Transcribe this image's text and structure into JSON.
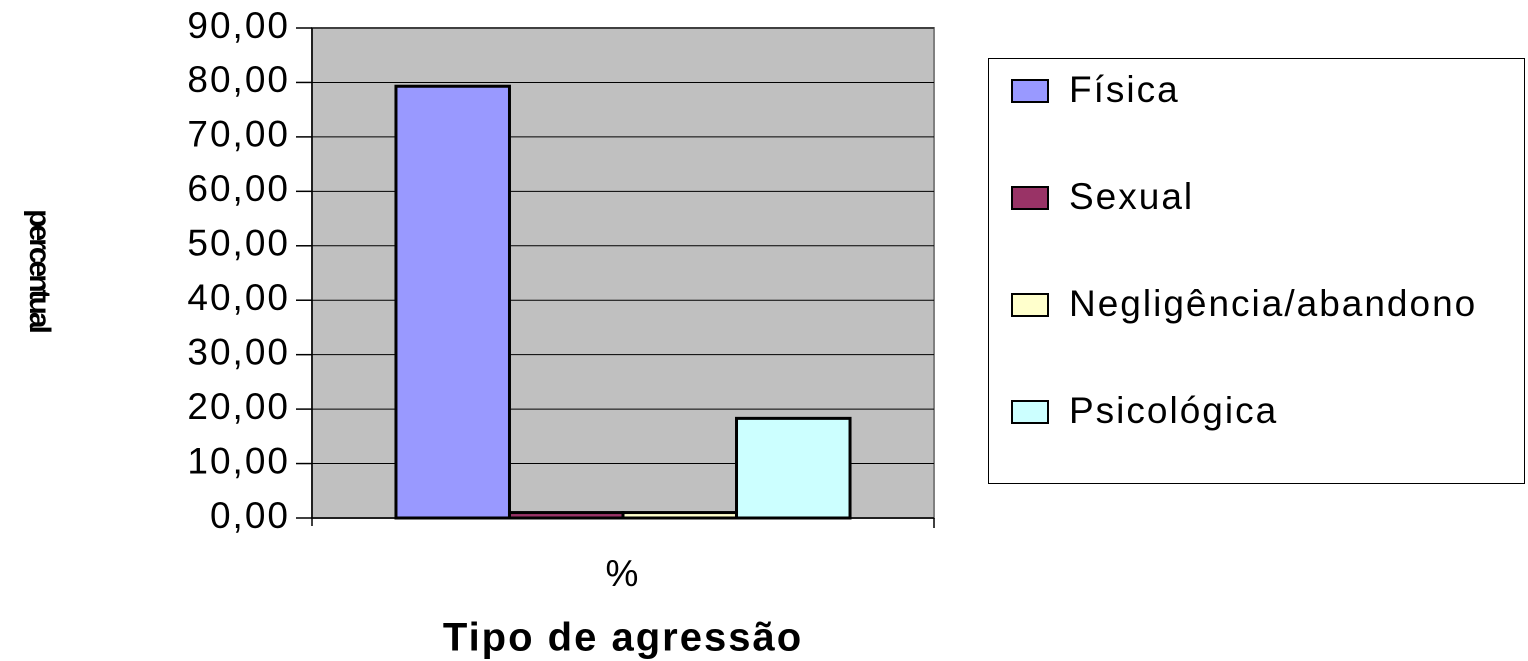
{
  "chart_data": {
    "type": "bar",
    "x_label": "Tipo de agressão",
    "y_label": "percentual",
    "categories": [
      "%"
    ],
    "series": [
      {
        "name": "Física",
        "color": "#9999ff",
        "values": [
          79.3
        ]
      },
      {
        "name": "Sexual",
        "color": "#993366",
        "values": [
          1.0
        ]
      },
      {
        "name": "Negligência/abandono",
        "color": "#ffffcc",
        "values": [
          1.0
        ]
      },
      {
        "name": "Psicológica",
        "color": "#ccffff",
        "values": [
          18.3
        ]
      }
    ],
    "ylim": [
      0,
      90
    ],
    "yticks": [
      {
        "value": 0,
        "label": "0,00"
      },
      {
        "value": 10,
        "label": "10,00"
      },
      {
        "value": 20,
        "label": "20,00"
      },
      {
        "value": 30,
        "label": "30,00"
      },
      {
        "value": 40,
        "label": "40,00"
      },
      {
        "value": 50,
        "label": "50,00"
      },
      {
        "value": 60,
        "label": "60,00"
      },
      {
        "value": 70,
        "label": "70,00"
      },
      {
        "value": 80,
        "label": "80,00"
      },
      {
        "value": 90,
        "label": "90,00"
      }
    ],
    "grid": true,
    "plot_background": "#c0c0c0"
  }
}
